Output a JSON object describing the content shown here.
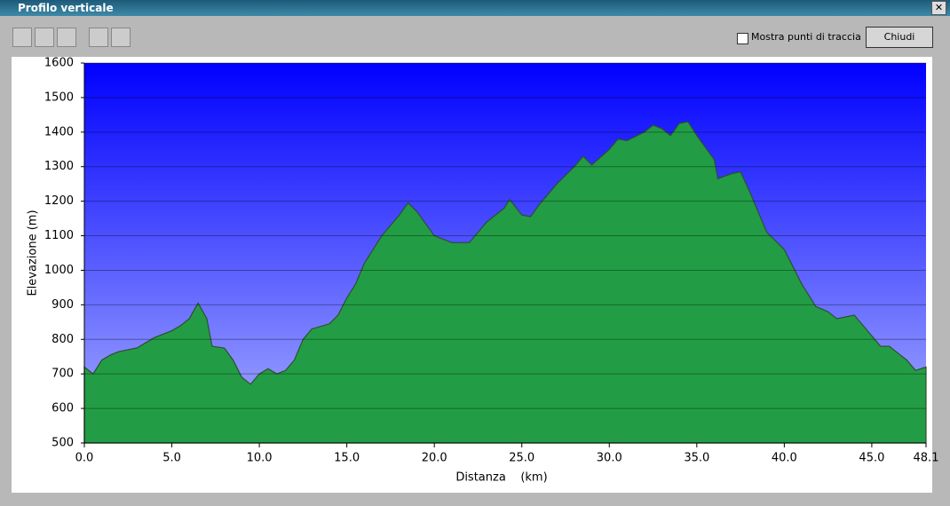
{
  "window": {
    "title": "Profilo verticale",
    "checkbox_label": "Mostra punti di traccia",
    "button": "Chiudi"
  },
  "chart_data": {
    "type": "area",
    "xlabel": "Distanza    (km)",
    "ylabel": "Elevazione (m)",
    "x": [
      0,
      0.5,
      1,
      1.5,
      2,
      3,
      4,
      5,
      5.5,
      6,
      6.5,
      7,
      7.3,
      8,
      8.5,
      9,
      9.5,
      10,
      10.5,
      11,
      11.5,
      12,
      12.5,
      13,
      14,
      14.5,
      15,
      15.5,
      16,
      17,
      18,
      18.5,
      19,
      20,
      21,
      22,
      22.5,
      23,
      24,
      24.3,
      25,
      25.5,
      26,
      27,
      28,
      28.5,
      29,
      30,
      30.5,
      31,
      32,
      32.5,
      33,
      33.5,
      34,
      34.5,
      35,
      36,
      36.2,
      37,
      37.5,
      38,
      39,
      40,
      41,
      41.8,
      42.5,
      43,
      44,
      45,
      45.5,
      46,
      47,
      47.5,
      48.1
    ],
    "values": [
      720,
      700,
      740,
      755,
      765,
      775,
      805,
      825,
      840,
      860,
      905,
      860,
      780,
      775,
      740,
      690,
      670,
      700,
      715,
      700,
      710,
      740,
      800,
      830,
      845,
      870,
      920,
      960,
      1020,
      1100,
      1160,
      1195,
      1170,
      1100,
      1080,
      1080,
      1110,
      1140,
      1180,
      1205,
      1160,
      1155,
      1190,
      1250,
      1300,
      1330,
      1305,
      1350,
      1380,
      1375,
      1400,
      1420,
      1410,
      1390,
      1425,
      1430,
      1390,
      1320,
      1265,
      1280,
      1285,
      1230,
      1110,
      1060,
      960,
      895,
      880,
      860,
      870,
      810,
      780,
      780,
      740,
      710,
      720
    ],
    "color": "#1fa346",
    "xlim": [
      0,
      48.1
    ],
    "ylim": [
      500,
      1600
    ],
    "xticks": [
      {
        "value": 0,
        "label": "0.0"
      },
      {
        "value": 5,
        "label": "5.0"
      },
      {
        "value": 10,
        "label": "10.0"
      },
      {
        "value": 15,
        "label": "15.0"
      },
      {
        "value": 20,
        "label": "20.0"
      },
      {
        "value": 25,
        "label": "25.0"
      },
      {
        "value": 30,
        "label": "30.0"
      },
      {
        "value": 35,
        "label": "35.0"
      },
      {
        "value": 40,
        "label": "40.0"
      },
      {
        "value": 45,
        "label": "45.0"
      },
      48.1
    ],
    "yticks": [
      500,
      600,
      700,
      800,
      900,
      1000,
      1100,
      1200,
      1300,
      1400,
      1500,
      1600
    ],
    "grid": true
  }
}
